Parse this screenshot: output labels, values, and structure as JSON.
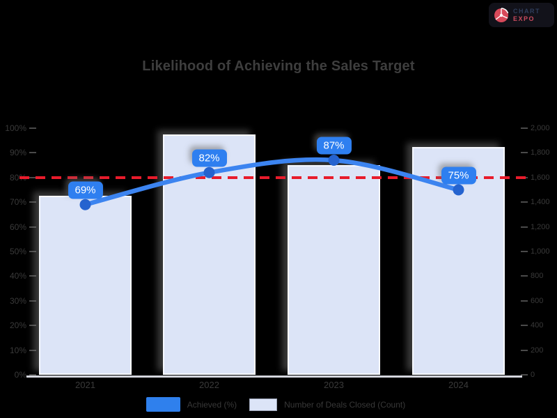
{
  "page": {
    "background": "#000000"
  },
  "logo": {
    "icon": "pie-circle-icon",
    "icon_color": "#d7495a",
    "line1": "CHART",
    "line2": "EXPO"
  },
  "chart_data": {
    "type": "bar",
    "subtype": "combo-bar-line-dual-axis",
    "title": "Likelihood of Achieving the Sales Target",
    "categories": [
      "2021",
      "2022",
      "2023",
      "2024"
    ],
    "series": [
      {
        "name": "Achieved (%)",
        "type": "line",
        "axis": "left",
        "values": [
          69,
          82,
          87,
          75
        ],
        "point_labels": [
          "69%",
          "82%",
          "87%",
          "75%"
        ],
        "color": "#3c84f0",
        "marker_color": "#2563cf",
        "label_bg": "#2e7ff0"
      },
      {
        "name": "Number of Deals Closed (Count)",
        "type": "bar",
        "axis": "right",
        "values": [
          1450,
          1950,
          1700,
          1850
        ],
        "color": "#dce4f7"
      }
    ],
    "target_line": {
      "value": 80,
      "axis": "left",
      "color": "#e81b2b",
      "style": "dashed"
    },
    "left_axis": {
      "min": 0,
      "max": 100,
      "step": 10,
      "format": "percent",
      "labels": [
        "100%",
        "90%",
        "80%",
        "70%",
        "60%",
        "50%",
        "40%",
        "30%",
        "20%",
        "10%",
        "0%"
      ]
    },
    "right_axis": {
      "min": 0,
      "max": 2000,
      "step": 200,
      "labels": [
        "2,000",
        "1,800",
        "1,600",
        "1,400",
        "1,200",
        "1,000",
        "800",
        "600",
        "400",
        "200",
        "0"
      ]
    },
    "legend": [
      {
        "label": "Achieved (%)",
        "swatch": "blue"
      },
      {
        "label": "Number of Deals Closed (Count)",
        "swatch": "lavender"
      }
    ],
    "grid": false,
    "legend_position": "bottom",
    "background": "#000000"
  }
}
